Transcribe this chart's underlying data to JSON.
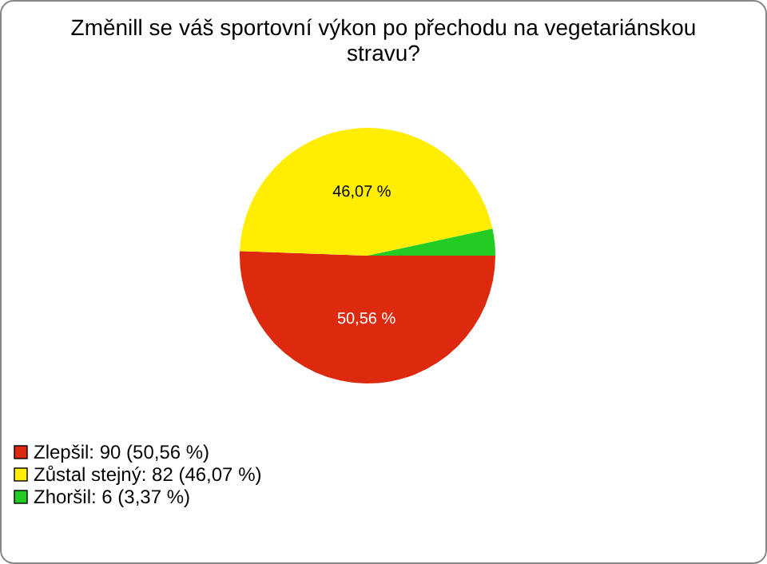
{
  "chart_data": {
    "type": "pie",
    "title": "Změnill se váš sportovní výkon po přechodu na vegetariánskou stravu?",
    "categories": [
      "Zlepšil: 90 (50,56 %)",
      "Zůstal stejný: 82 (46,07 %)",
      "Zhoršil: 6 (3,37 %)"
    ],
    "values": [
      50.56,
      46.07,
      3.37
    ],
    "colors": [
      "#dd2a0e",
      "#ffee00",
      "#22cc22"
    ],
    "value_labels": [
      "50,56 %",
      "46,07 %",
      null
    ],
    "legend": "bottom left"
  }
}
